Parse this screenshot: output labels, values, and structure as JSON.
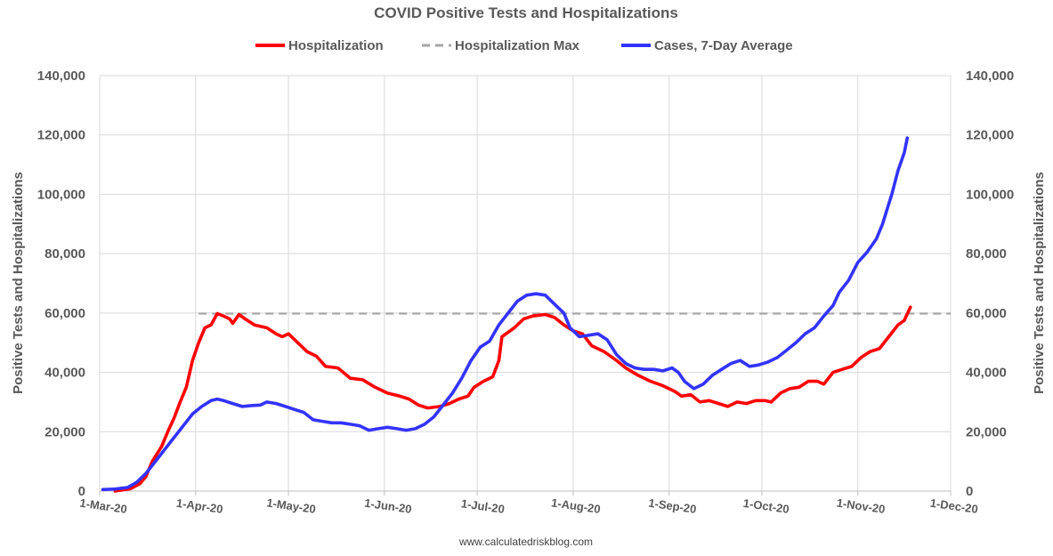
{
  "chart_data": {
    "type": "line",
    "title": "COVID Positive Tests and Hospitalizations",
    "ylabel_left": "Positive Tests and Hospitalizations",
    "ylabel_right": "Positive Tests and Hospitalizations",
    "ylim": [
      0,
      140000
    ],
    "xlim_days": [
      0,
      275
    ],
    "y_ticks": [
      0,
      20000,
      40000,
      60000,
      80000,
      100000,
      120000,
      140000
    ],
    "y_tick_labels": [
      "0",
      "20,000",
      "40,000",
      "60,000",
      "80,000",
      "100,000",
      "120,000",
      "140,000"
    ],
    "x_ticks": [
      {
        "day": 0,
        "label": "1-Mar-20"
      },
      {
        "day": 31,
        "label": "1-Apr-20"
      },
      {
        "day": 61,
        "label": "1-May-20"
      },
      {
        "day": 92,
        "label": "1-Jun-20"
      },
      {
        "day": 122,
        "label": "1-Jul-20"
      },
      {
        "day": 153,
        "label": "1-Aug-20"
      },
      {
        "day": 184,
        "label": "1-Sep-20"
      },
      {
        "day": 214,
        "label": "1-Oct-20"
      },
      {
        "day": 245,
        "label": "1-Nov-20"
      },
      {
        "day": 275,
        "label": "1-Dec-20"
      }
    ],
    "series": [
      {
        "name": "Hospitalization",
        "color": "#ff0000",
        "style": "solid",
        "points": [
          [
            5,
            0
          ],
          [
            10,
            800
          ],
          [
            13,
            2500
          ],
          [
            15,
            5000
          ],
          [
            17,
            10000
          ],
          [
            20,
            15000
          ],
          [
            22,
            20000
          ],
          [
            24,
            24500
          ],
          [
            26,
            30000
          ],
          [
            28,
            35000
          ],
          [
            30,
            44000
          ],
          [
            32,
            50000
          ],
          [
            34,
            55000
          ],
          [
            36,
            56000
          ],
          [
            38,
            59800
          ],
          [
            40,
            59000
          ],
          [
            42,
            58000
          ],
          [
            43,
            56500
          ],
          [
            45,
            59500
          ],
          [
            47,
            58000
          ],
          [
            50,
            56000
          ],
          [
            54,
            55000
          ],
          [
            57,
            53000
          ],
          [
            59,
            52000
          ],
          [
            61,
            53000
          ],
          [
            64,
            50000
          ],
          [
            67,
            47000
          ],
          [
            70,
            45500
          ],
          [
            73,
            42000
          ],
          [
            77,
            41500
          ],
          [
            81,
            38000
          ],
          [
            85,
            37500
          ],
          [
            89,
            35000
          ],
          [
            93,
            33000
          ],
          [
            97,
            32000
          ],
          [
            100,
            31000
          ],
          [
            103,
            29000
          ],
          [
            106,
            28000
          ],
          [
            110,
            28500
          ],
          [
            113,
            29500
          ],
          [
            116,
            31000
          ],
          [
            119,
            32000
          ],
          [
            121,
            35000
          ],
          [
            124,
            37000
          ],
          [
            127,
            38500
          ],
          [
            129,
            44000
          ],
          [
            130,
            52000
          ],
          [
            134,
            55000
          ],
          [
            137,
            58000
          ],
          [
            140,
            59000
          ],
          [
            144,
            59500
          ],
          [
            147,
            58500
          ],
          [
            150,
            56000
          ],
          [
            153,
            54000
          ],
          [
            156,
            53000
          ],
          [
            159,
            49000
          ],
          [
            163,
            47000
          ],
          [
            167,
            44000
          ],
          [
            170,
            41500
          ],
          [
            174,
            39000
          ],
          [
            178,
            37000
          ],
          [
            182,
            35500
          ],
          [
            186,
            33500
          ],
          [
            188,
            32000
          ],
          [
            191,
            32500
          ],
          [
            194,
            30000
          ],
          [
            197,
            30500
          ],
          [
            200,
            29500
          ],
          [
            203,
            28500
          ],
          [
            206,
            30000
          ],
          [
            209,
            29500
          ],
          [
            212,
            30500
          ],
          [
            215,
            30500
          ],
          [
            217,
            30000
          ],
          [
            220,
            33000
          ],
          [
            223,
            34500
          ],
          [
            226,
            35000
          ],
          [
            229,
            37000
          ],
          [
            232,
            37000
          ],
          [
            234,
            36000
          ],
          [
            237,
            40000
          ],
          [
            240,
            41000
          ],
          [
            243,
            42000
          ],
          [
            246,
            45000
          ],
          [
            249,
            47000
          ],
          [
            252,
            48000
          ],
          [
            255,
            52000
          ],
          [
            258,
            56000
          ],
          [
            260,
            57500
          ],
          [
            262,
            62000
          ]
        ]
      },
      {
        "name": "Hospitalization Max",
        "color": "#a6a6a6",
        "style": "dashed",
        "points": [
          [
            32,
            59800
          ],
          [
            275,
            59800
          ]
        ]
      },
      {
        "name": "Cases, 7-Day Average",
        "color": "#3333ff",
        "style": "solid",
        "points": [
          [
            1,
            500
          ],
          [
            5,
            700
          ],
          [
            9,
            1200
          ],
          [
            12,
            3000
          ],
          [
            15,
            6000
          ],
          [
            18,
            10000
          ],
          [
            21,
            14000
          ],
          [
            24,
            18000
          ],
          [
            27,
            22000
          ],
          [
            30,
            26000
          ],
          [
            33,
            28500
          ],
          [
            36,
            30500
          ],
          [
            38,
            31000
          ],
          [
            40,
            30500
          ],
          [
            43,
            29500
          ],
          [
            46,
            28500
          ],
          [
            49,
            28800
          ],
          [
            52,
            29000
          ],
          [
            54,
            30000
          ],
          [
            57,
            29500
          ],
          [
            60,
            28500
          ],
          [
            63,
            27500
          ],
          [
            66,
            26500
          ],
          [
            69,
            24000
          ],
          [
            72,
            23500
          ],
          [
            75,
            23000
          ],
          [
            78,
            23000
          ],
          [
            81,
            22500
          ],
          [
            84,
            22000
          ],
          [
            87,
            20500
          ],
          [
            90,
            21000
          ],
          [
            93,
            21500
          ],
          [
            96,
            21000
          ],
          [
            99,
            20500
          ],
          [
            102,
            21000
          ],
          [
            105,
            22500
          ],
          [
            108,
            25000
          ],
          [
            111,
            29000
          ],
          [
            114,
            33000
          ],
          [
            117,
            38000
          ],
          [
            120,
            44000
          ],
          [
            123,
            48500
          ],
          [
            126,
            50500
          ],
          [
            129,
            56000
          ],
          [
            132,
            60000
          ],
          [
            135,
            64000
          ],
          [
            138,
            66000
          ],
          [
            141,
            66500
          ],
          [
            144,
            66000
          ],
          [
            147,
            63000
          ],
          [
            150,
            60000
          ],
          [
            152,
            55000
          ],
          [
            155,
            52000
          ],
          [
            158,
            52500
          ],
          [
            161,
            53000
          ],
          [
            164,
            51000
          ],
          [
            167,
            46000
          ],
          [
            170,
            43000
          ],
          [
            173,
            41500
          ],
          [
            176,
            41000
          ],
          [
            179,
            41000
          ],
          [
            182,
            40500
          ],
          [
            185,
            41500
          ],
          [
            187,
            40000
          ],
          [
            189,
            37000
          ],
          [
            192,
            34500
          ],
          [
            195,
            36000
          ],
          [
            198,
            39000
          ],
          [
            201,
            41000
          ],
          [
            204,
            43000
          ],
          [
            207,
            44000
          ],
          [
            210,
            42000
          ],
          [
            213,
            42500
          ],
          [
            216,
            43500
          ],
          [
            219,
            45000
          ],
          [
            222,
            47500
          ],
          [
            225,
            50000
          ],
          [
            228,
            53000
          ],
          [
            231,
            55000
          ],
          [
            234,
            59000
          ],
          [
            237,
            62500
          ],
          [
            239,
            67000
          ],
          [
            242,
            71000
          ],
          [
            245,
            77000
          ],
          [
            248,
            80500
          ],
          [
            251,
            85000
          ],
          [
            253,
            90000
          ],
          [
            256,
            100000
          ],
          [
            258,
            108000
          ],
          [
            260,
            114000
          ],
          [
            261,
            119000
          ]
        ]
      }
    ],
    "legend": {
      "position": "top",
      "items": [
        {
          "label": "Hospitalization",
          "color": "#ff0000",
          "style": "solid"
        },
        {
          "label": "Hospitalization Max",
          "color": "#a6a6a6",
          "style": "dashed"
        },
        {
          "label": "Cases, 7-Day Average",
          "color": "#3333ff",
          "style": "solid"
        }
      ]
    },
    "source": "www.calculatedriskblog.com",
    "grid": true
  }
}
